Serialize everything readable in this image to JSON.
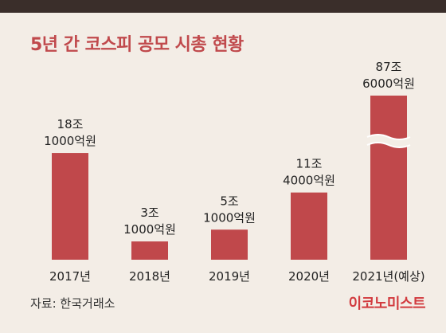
{
  "title": "5년 간 코스피 공모 시총 현황",
  "source": "자료: 한국거래소",
  "logo": "이코노미스트",
  "colors": {
    "bar": "#c0484b",
    "background": "#f3ede6",
    "top_bar": "#3a2e2a",
    "title": "#c0494c",
    "logo": "#d23a3e"
  },
  "chart_data": {
    "type": "bar",
    "title": "5년 간 코스피 공모 시총 현황",
    "categories": [
      "2017년",
      "2018년",
      "2019년",
      "2020년",
      "2021년(예상)"
    ],
    "values": [
      181000,
      31000,
      51000,
      114000,
      876000
    ],
    "value_labels": [
      [
        "18조",
        "1000억원"
      ],
      [
        "3조",
        "1000억원"
      ],
      [
        "5조",
        "1000억원"
      ],
      [
        "11조",
        "4000억원"
      ],
      [
        "87조",
        "6000억원"
      ]
    ],
    "unit": "억원",
    "axis_break": [
      4
    ],
    "grid": false
  }
}
